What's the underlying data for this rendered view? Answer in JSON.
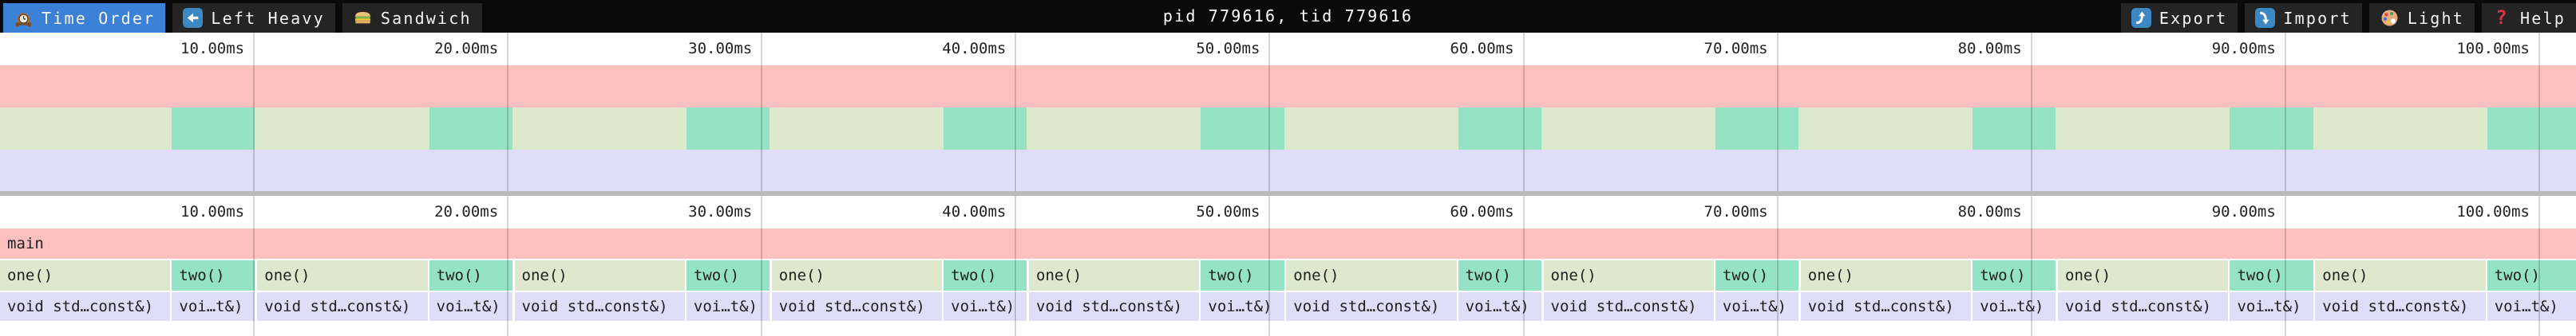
{
  "toolbar": {
    "title": "pid 779616, tid 779616",
    "tabs": [
      {
        "id": "time-order",
        "icon": "clock-icon",
        "label": "Time Order",
        "active": true
      },
      {
        "id": "left-heavy",
        "icon": "left-arrow-icon",
        "label": "Left Heavy",
        "active": false
      },
      {
        "id": "sandwich",
        "icon": "sandwich-icon",
        "label": "Sandwich",
        "active": false
      }
    ],
    "actions": [
      {
        "id": "export",
        "icon": "export-icon",
        "label": "Export"
      },
      {
        "id": "import",
        "icon": "import-icon",
        "label": "Import"
      },
      {
        "id": "theme",
        "icon": "palette-icon",
        "label": "Light"
      },
      {
        "id": "help",
        "icon": "help-icon",
        "label": "Help"
      }
    ]
  },
  "ruler": {
    "tick_interval_ms": 10,
    "tick_labels": [
      "10.00ms",
      "20.00ms",
      "30.00ms",
      "40.00ms",
      "50.00ms",
      "60.00ms",
      "70.00ms",
      "80.00ms",
      "90.00ms",
      "100.00ms"
    ]
  },
  "flamegraph": {
    "total_ms": 101.45,
    "period_ms": 10.131,
    "repeat_pairs": 10,
    "root": {
      "label": "main",
      "color": "pink"
    },
    "frames": [
      {
        "id": "one",
        "label": "one()",
        "start_offset_ms": 0,
        "dur_ms": 6.71,
        "color": "sage",
        "child": {
          "label": "void std…const&)",
          "color": "lavender"
        }
      },
      {
        "id": "two",
        "label": "two()",
        "start_offset_ms": 6.772,
        "dur_ms": 3.272,
        "color": "teal",
        "child": {
          "label": "voi…t&)",
          "color": "lavender"
        }
      }
    ],
    "last_two_extends_to_edge": true,
    "colors": {
      "pink": "#fcc0c1",
      "sage": "#dee8cd",
      "teal": "#94e3c5",
      "lavender": "#dfddf8",
      "selected_tab": "#3b81d8",
      "toolbar_bg": "#0a0a0a",
      "separator": "#b9b9b9"
    }
  }
}
